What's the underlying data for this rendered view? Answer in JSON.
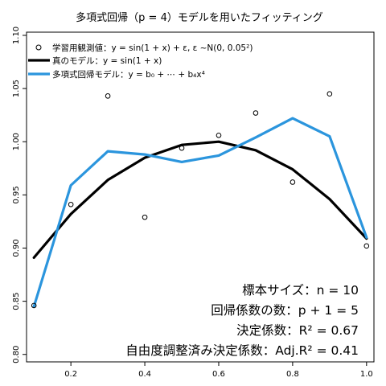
{
  "chart_data": {
    "type": "line",
    "title": "多項式回帰（p = 4）モデルを用いたフィッティング",
    "xlabel": "",
    "ylabel": "",
    "xlim": [
      0.08,
      1.02
    ],
    "ylim": [
      0.793,
      1.103
    ],
    "x_ticks": [
      0.2,
      0.4,
      0.6,
      0.8,
      1.0
    ],
    "x_tick_labels": [
      "0.2",
      "0.4",
      "0.6",
      "0.8",
      "1.0"
    ],
    "y_ticks": [
      0.8,
      0.85,
      0.9,
      0.95,
      1.0,
      1.05,
      1.1
    ],
    "y_tick_labels": [
      "0.80",
      "0.85",
      "0.90",
      "0.95",
      "1.00",
      "1.05",
      "1.10"
    ],
    "grid": false,
    "legend_position": "top-left",
    "x": [
      0.1,
      0.2,
      0.3,
      0.4,
      0.5,
      0.6,
      0.7,
      0.8,
      0.9,
      1.0
    ],
    "series": [
      {
        "name": "学習用観測値：y = sin(1 + x) + ε, ε ~N(0, 0.05²)",
        "kind": "points",
        "color": "#000000",
        "values": [
          0.846,
          0.941,
          1.043,
          0.929,
          0.994,
          1.006,
          1.027,
          0.962,
          1.045,
          0.902
        ]
      },
      {
        "name": "真のモデル：y = sin(1 + x)",
        "kind": "line",
        "color": "#000000",
        "values": [
          0.891,
          0.932,
          0.964,
          0.985,
          0.997,
          1.0,
          0.992,
          0.974,
          0.946,
          0.909
        ]
      },
      {
        "name": "多項式回帰モデル：y = b₀ + ⋯ + b₄x⁴",
        "kind": "line",
        "color": "#2b95dd",
        "values": [
          0.845,
          0.959,
          0.991,
          0.988,
          0.981,
          0.987,
          1.004,
          1.022,
          1.005,
          0.91
        ]
      }
    ],
    "annotations": [
      "標本サイズ：n = 10",
      "回帰係数の数：p + 1 = 5",
      "決定係数：R² = 0.67",
      "自由度調整済み決定係数：Adj.R² = 0.41"
    ]
  }
}
